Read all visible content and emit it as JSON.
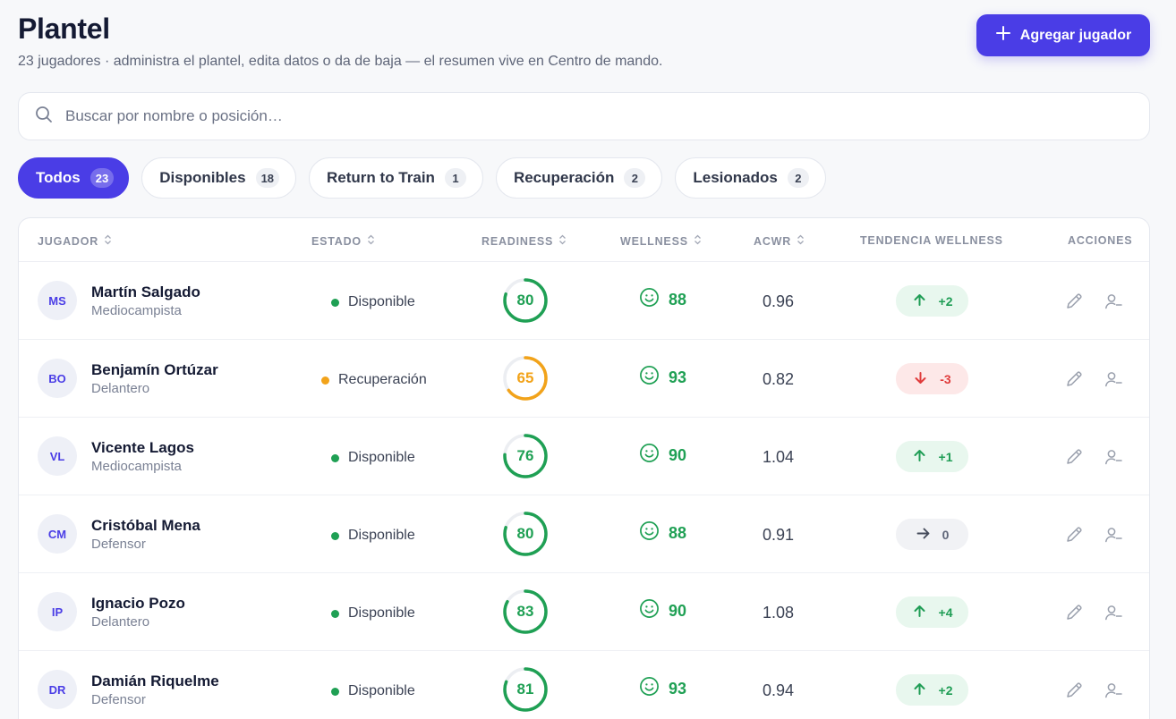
{
  "header": {
    "title": "Plantel",
    "subtitle": "23 jugadores · administra el plantel, edita datos o da de baja — el resumen vive en Centro de mando.",
    "add_button_label": "Agregar jugador"
  },
  "search": {
    "placeholder": "Buscar por nombre o posición…",
    "value": ""
  },
  "filters": [
    {
      "label": "Todos",
      "count": "23",
      "active": true
    },
    {
      "label": "Disponibles",
      "count": "18",
      "active": false
    },
    {
      "label": "Return to Train",
      "count": "1",
      "active": false
    },
    {
      "label": "Recuperación",
      "count": "2",
      "active": false
    },
    {
      "label": "Lesionados",
      "count": "2",
      "active": false
    }
  ],
  "table": {
    "columns": {
      "player": "JUGADOR",
      "status": "ESTADO",
      "readiness": "READINESS",
      "wellness": "WELLNESS",
      "acwr": "ACWR",
      "trend": "TENDENCIA WELLNESS",
      "actions": "ACCIONES"
    },
    "rows": [
      {
        "initials": "MS",
        "name": "Martín Salgado",
        "position": "Mediocampista",
        "status": "Disponible",
        "status_kind": "available",
        "readiness": 80,
        "wellness": "88",
        "acwr": "0.96",
        "trend": "+2",
        "trend_dir": "up"
      },
      {
        "initials": "BO",
        "name": "Benjamín Ortúzar",
        "position": "Delantero",
        "status": "Recuperación",
        "status_kind": "recovery",
        "readiness": 65,
        "wellness": "93",
        "acwr": "0.82",
        "trend": "-3",
        "trend_dir": "down"
      },
      {
        "initials": "VL",
        "name": "Vicente Lagos",
        "position": "Mediocampista",
        "status": "Disponible",
        "status_kind": "available",
        "readiness": 76,
        "wellness": "90",
        "acwr": "1.04",
        "trend": "+1",
        "trend_dir": "up"
      },
      {
        "initials": "CM",
        "name": "Cristóbal Mena",
        "position": "Defensor",
        "status": "Disponible",
        "status_kind": "available",
        "readiness": 80,
        "wellness": "88",
        "acwr": "0.91",
        "trend": "0",
        "trend_dir": "flat"
      },
      {
        "initials": "IP",
        "name": "Ignacio Pozo",
        "position": "Delantero",
        "status": "Disponible",
        "status_kind": "available",
        "readiness": 83,
        "wellness": "90",
        "acwr": "1.08",
        "trend": "+4",
        "trend_dir": "up"
      },
      {
        "initials": "DR",
        "name": "Damián Riquelme",
        "position": "Defensor",
        "status": "Disponible",
        "status_kind": "available",
        "readiness": 81,
        "wellness": "93",
        "acwr": "0.94",
        "trend": "+2",
        "trend_dir": "up"
      }
    ]
  },
  "colors": {
    "accent": "#4a3de6",
    "available": "#1fa054",
    "recovery": "#f2a31a",
    "trend_up": "#1f9d55",
    "trend_down": "#e03b3b",
    "trend_flat": "#5f6679",
    "gauge_track": "#eceef2"
  },
  "icons": {
    "add": "plus-icon",
    "search": "search-icon",
    "sort": "sort-icon",
    "wellness": "smile-icon",
    "edit": "pencil-icon",
    "remove": "user-minus-icon"
  }
}
